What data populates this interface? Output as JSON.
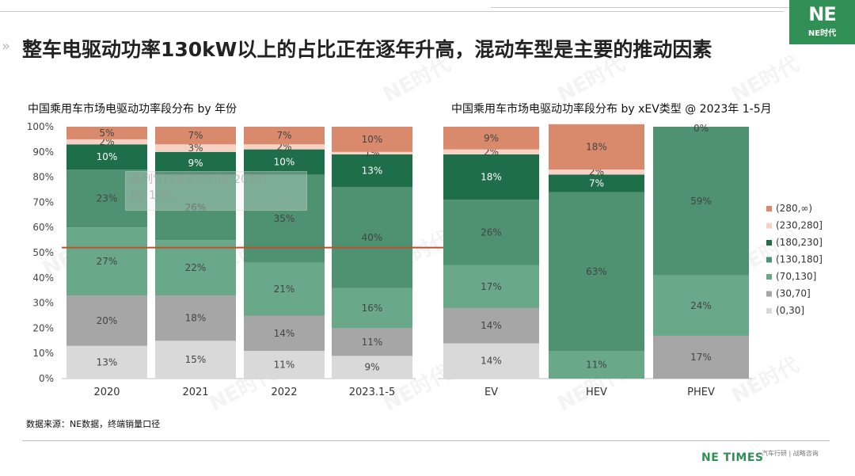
{
  "headline": "整车电驱动功率130kW以上的占比正在逐年升高，混动车型是主要的推动因素",
  "logo": {
    "mark": "NE",
    "text": "NE时代"
  },
  "watermark": "NE时代",
  "footer": {
    "source": "数据来源：NE数据，终端销量口径",
    "brand": "NE TIMES",
    "tagline": "汽车行研 | 战略咨询"
  },
  "tooltip": {
    "line1": "系列\"(180,230]\"点\"2020\"",
    "line2": "值: 10%"
  },
  "colors": {
    "(0,30]": "#d9d9d9",
    "(30,70]": "#a6a6a6",
    "(70,130]": "#69a98a",
    "(130,180]": "#4e9271",
    "(180,230]": "#1f6e4a",
    "(230,280]": "#f5d2c4",
    "(280,∞)": "#d98a6c",
    "reference_line": "#c0502a"
  },
  "chart_data": [
    {
      "type": "bar",
      "stacked": true,
      "title": "中国乘用车市场电驱动功率段分布 by 年份",
      "categories": [
        "2020",
        "2021",
        "2022",
        "2023.1-5"
      ],
      "ylim": [
        0,
        100
      ],
      "yticks": [
        "0%",
        "10%",
        "20%",
        "30%",
        "40%",
        "50%",
        "60%",
        "70%",
        "80%",
        "90%",
        "100%"
      ],
      "reference_line_y": 52,
      "series": [
        {
          "name": "(0,30]",
          "values": [
            13,
            15,
            11,
            9
          ]
        },
        {
          "name": "(30,70]",
          "values": [
            20,
            18,
            14,
            11
          ]
        },
        {
          "name": "(70,130]",
          "values": [
            27,
            22,
            21,
            16
          ]
        },
        {
          "name": "(130,180]",
          "values": [
            23,
            26,
            35,
            40
          ]
        },
        {
          "name": "(180,230]",
          "values": [
            10,
            9,
            10,
            13
          ]
        },
        {
          "name": "(230,280]",
          "values": [
            2,
            3,
            2,
            1
          ]
        },
        {
          "name": "(280,∞)",
          "values": [
            5,
            7,
            7,
            10
          ]
        }
      ]
    },
    {
      "type": "bar",
      "stacked": true,
      "title": "中国乘用车市场电驱动功率段分布 by xEV类型 @ 2023年 1-5月",
      "categories": [
        "EV",
        "HEV",
        "PHEV"
      ],
      "ylim": [
        0,
        100
      ],
      "series": [
        {
          "name": "(0,30]",
          "values": [
            14,
            0,
            0
          ]
        },
        {
          "name": "(30,70]",
          "values": [
            14,
            0,
            17
          ]
        },
        {
          "name": "(70,130]",
          "values": [
            17,
            11,
            24
          ]
        },
        {
          "name": "(130,180]",
          "values": [
            26,
            63,
            59
          ]
        },
        {
          "name": "(180,230]",
          "values": [
            18,
            7,
            0
          ]
        },
        {
          "name": "(230,280]",
          "values": [
            2,
            2,
            0
          ]
        },
        {
          "name": "(280,∞)",
          "values": [
            9,
            18,
            0
          ]
        }
      ],
      "legend_position": "right"
    }
  ]
}
